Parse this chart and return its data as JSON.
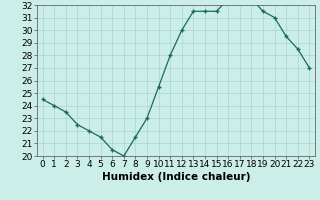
{
  "x": [
    0,
    1,
    2,
    3,
    4,
    5,
    6,
    7,
    8,
    9,
    10,
    11,
    12,
    13,
    14,
    15,
    16,
    17,
    18,
    19,
    20,
    21,
    22,
    23
  ],
  "y": [
    24.5,
    24.0,
    23.5,
    22.5,
    22.0,
    21.5,
    20.5,
    20.0,
    21.5,
    23.0,
    25.5,
    28.0,
    30.0,
    31.5,
    31.5,
    31.5,
    32.5,
    32.5,
    32.5,
    31.5,
    31.0,
    29.5,
    28.5,
    27.0
  ],
  "xlabel": "Humidex (Indice chaleur)",
  "ylim": [
    20,
    32
  ],
  "xlim": [
    -0.5,
    23.5
  ],
  "yticks": [
    20,
    21,
    22,
    23,
    24,
    25,
    26,
    27,
    28,
    29,
    30,
    31,
    32
  ],
  "xticks": [
    0,
    1,
    2,
    3,
    4,
    5,
    6,
    7,
    8,
    9,
    10,
    11,
    12,
    13,
    14,
    15,
    16,
    17,
    18,
    19,
    20,
    21,
    22,
    23
  ],
  "line_color": "#1a6b5a",
  "marker": "+",
  "bg_color": "#cceee8",
  "grid_color": "#aad4ce",
  "tick_label_fontsize": 6.5,
  "xlabel_fontsize": 7.5
}
